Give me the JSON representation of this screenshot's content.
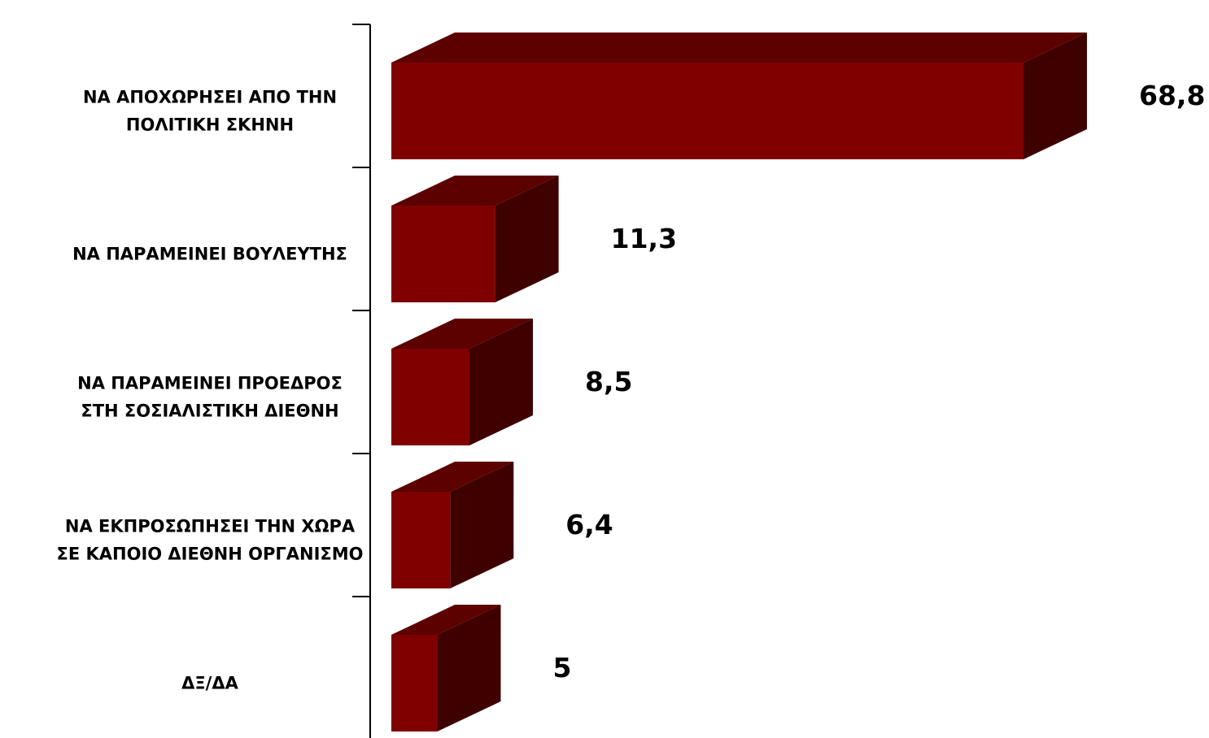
{
  "chart_data": {
    "type": "bar",
    "orientation": "horizontal",
    "three_d": true,
    "categories": [
      [
        "ΝΑ ΑΠΟΧΩΡΗΣΕΙ ΑΠΟ ΤΗΝ",
        "ΠΟΛΙΤΙΚΗ ΣΚΗΝΗ"
      ],
      [
        "ΝΑ ΠΑΡΑΜΕΙΝΕΙ ΒΟΥΛΕΥΤΗΣ"
      ],
      [
        "ΝΑ ΠΑΡΑΜΕΙΝΕΙ ΠΡΟΕΔΡΟΣ",
        "ΣΤΗ ΣΟΣΙΑΛΙΣΤΙΚΗ ΔΙΕΘΝΗ"
      ],
      [
        "ΝΑ ΕΚΠΡΟΣΩΠΗΣΕΙ ΤΗΝ ΧΩΡΑ",
        "ΣΕ ΚΑΠΟΙΟ ΔΙΕΘΝΗ ΟΡΓΑΝΙΣΜΟ"
      ],
      [
        "ΔΞ/ΔΑ"
      ]
    ],
    "values": [
      68.8,
      11.3,
      8.5,
      6.4,
      5
    ],
    "value_labels": [
      "68,8",
      "11,3",
      "8,5",
      "6,4",
      "5"
    ],
    "xlim": [
      0,
      68.8
    ],
    "grid": false,
    "legend": "none",
    "colors": {
      "front": "#800000",
      "top": "#5c0000",
      "side": "#3f0000",
      "axis": "#000000"
    }
  }
}
